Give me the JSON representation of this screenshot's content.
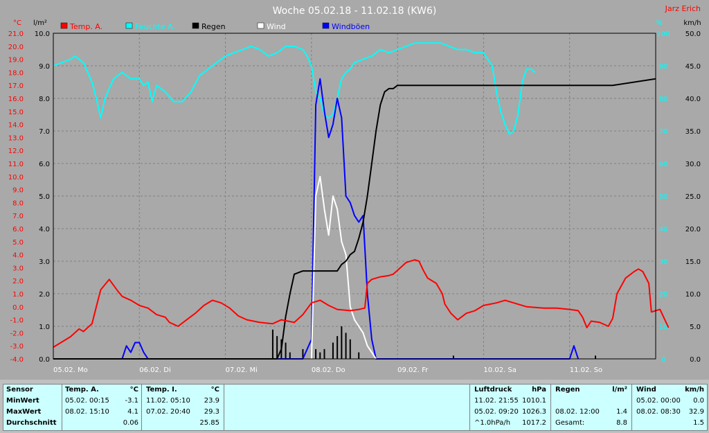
{
  "header": {
    "title": "Woche 05.02.18 - 11.02.18 (KW6)",
    "author": "Jarz Erich"
  },
  "legend": [
    {
      "label": "Temp. A.",
      "color": "#ff0000"
    },
    {
      "label": "Feuchte A.",
      "color": "#00ffff"
    },
    {
      "label": "Regen",
      "color": "#000000"
    },
    {
      "label": "Wind",
      "color": "#ffffff"
    },
    {
      "label": "Windböen",
      "color": "#0000ff"
    }
  ],
  "axes": {
    "left_temp_unit": "°C",
    "left_rain_unit": "l/m²",
    "right_hum_unit": "%",
    "right_wind_unit": "km/h",
    "temp_ticks": [
      "21.0",
      "20.0",
      "19.0",
      "18.0",
      "17.0",
      "16.0",
      "15.0",
      "14.0",
      "13.0",
      "12.0",
      "11.0",
      "10.0",
      "9.0",
      "8.0",
      "7.0",
      "6.0",
      "5.0",
      "4.0",
      "3.0",
      "2.0",
      "1.0",
      "0.0",
      "-1.0",
      "-2.0",
      "-3.0",
      "-4.0"
    ],
    "rain_ticks": [
      "10.0",
      "9.0",
      "8.0",
      "7.0",
      "6.0",
      "5.0",
      "4.0",
      "3.0",
      "2.0",
      "1.0",
      "0.0"
    ],
    "hum_ticks": [
      "100",
      "90",
      "80",
      "70",
      "60",
      "50",
      "40",
      "30",
      "20",
      "10",
      "0"
    ],
    "wind_ticks": [
      "50.0",
      "45.0",
      "40.0",
      "35.0",
      "30.0",
      "25.0",
      "20.0",
      "15.0",
      "10.0",
      "5.0",
      "0.0"
    ],
    "day_labels": [
      "05.02.  Mo",
      "06.02.  Di",
      "07.02.  Mi",
      "08.02.  Do",
      "09.02.  Fr",
      "10.02.  Sa",
      "11.02.  So"
    ]
  },
  "chart_data": {
    "type": "line",
    "title": "Woche 05.02.18 - 11.02.18 (KW6)",
    "x_unit": "days since 05.02. 00:00",
    "xlim": [
      0,
      7
    ],
    "temp_ylim": [
      -4,
      21
    ],
    "rain_ylim": [
      0,
      10
    ],
    "hum_ylim": [
      0,
      100
    ],
    "wind_ylim": [
      0,
      50
    ],
    "series": [
      {
        "name": "Temp. A.",
        "color": "#ff0000",
        "axis": "temp",
        "points": [
          [
            0,
            -3.1
          ],
          [
            0.1,
            -2.7
          ],
          [
            0.2,
            -2.3
          ],
          [
            0.3,
            -1.7
          ],
          [
            0.35,
            -1.9
          ],
          [
            0.45,
            -1.3
          ],
          [
            0.5,
            0.0
          ],
          [
            0.55,
            1.3
          ],
          [
            0.65,
            2.1
          ],
          [
            0.75,
            1.2
          ],
          [
            0.8,
            0.8
          ],
          [
            0.9,
            0.5
          ],
          [
            1.0,
            0.1
          ],
          [
            1.1,
            -0.1
          ],
          [
            1.2,
            -0.6
          ],
          [
            1.3,
            -0.8
          ],
          [
            1.35,
            -1.2
          ],
          [
            1.45,
            -1.5
          ],
          [
            1.55,
            -1.0
          ],
          [
            1.65,
            -0.5
          ],
          [
            1.75,
            0.1
          ],
          [
            1.85,
            0.5
          ],
          [
            1.95,
            0.3
          ],
          [
            2.05,
            -0.1
          ],
          [
            2.15,
            -0.7
          ],
          [
            2.25,
            -1.0
          ],
          [
            2.4,
            -1.2
          ],
          [
            2.55,
            -1.3
          ],
          [
            2.65,
            -1.0
          ],
          [
            2.8,
            -1.2
          ],
          [
            2.9,
            -0.6
          ],
          [
            3.0,
            0.3
          ],
          [
            3.1,
            0.5
          ],
          [
            3.2,
            0.1
          ],
          [
            3.3,
            -0.2
          ],
          [
            3.45,
            -0.3
          ],
          [
            3.55,
            -0.2
          ],
          [
            3.62,
            -0.1
          ],
          [
            3.65,
            1.8
          ],
          [
            3.7,
            2.1
          ],
          [
            3.8,
            2.3
          ],
          [
            3.9,
            2.4
          ],
          [
            3.95,
            2.5
          ],
          [
            4.0,
            2.8
          ],
          [
            4.1,
            3.4
          ],
          [
            4.2,
            3.6
          ],
          [
            4.25,
            3.5
          ],
          [
            4.3,
            2.8
          ],
          [
            4.35,
            2.2
          ],
          [
            4.45,
            1.8
          ],
          [
            4.52,
            1.0
          ],
          [
            4.55,
            0.2
          ],
          [
            4.62,
            -0.5
          ],
          [
            4.7,
            -1.0
          ],
          [
            4.8,
            -0.5
          ],
          [
            4.9,
            -0.3
          ],
          [
            5.0,
            0.1
          ],
          [
            5.15,
            0.3
          ],
          [
            5.25,
            0.5
          ],
          [
            5.35,
            0.3
          ],
          [
            5.5,
            0.0
          ],
          [
            5.7,
            -0.1
          ],
          [
            5.85,
            -0.1
          ],
          [
            6.0,
            -0.2
          ],
          [
            6.1,
            -0.3
          ],
          [
            6.15,
            -0.8
          ],
          [
            6.2,
            -1.6
          ],
          [
            6.25,
            -1.1
          ],
          [
            6.35,
            -1.2
          ],
          [
            6.45,
            -1.5
          ],
          [
            6.5,
            -0.9
          ],
          [
            6.55,
            1.0
          ],
          [
            6.65,
            2.2
          ],
          [
            6.75,
            2.7
          ],
          [
            6.8,
            2.9
          ],
          [
            6.85,
            2.7
          ],
          [
            6.92,
            1.8
          ],
          [
            6.95,
            -0.4
          ],
          [
            7.0,
            -0.3
          ],
          [
            7.05,
            -0.2
          ],
          [
            7.15,
            -1.6
          ]
        ]
      },
      {
        "name": "Feuchte A.",
        "color": "#00ffff",
        "axis": "hum",
        "points": [
          [
            0,
            90
          ],
          [
            0.1,
            91
          ],
          [
            0.2,
            92
          ],
          [
            0.25,
            93
          ],
          [
            0.35,
            91
          ],
          [
            0.45,
            85
          ],
          [
            0.5,
            80
          ],
          [
            0.55,
            74
          ],
          [
            0.6,
            80
          ],
          [
            0.7,
            86
          ],
          [
            0.8,
            88
          ],
          [
            0.9,
            86
          ],
          [
            1.0,
            86
          ],
          [
            1.05,
            84
          ],
          [
            1.1,
            85
          ],
          [
            1.15,
            79
          ],
          [
            1.2,
            84
          ],
          [
            1.3,
            82
          ],
          [
            1.4,
            79
          ],
          [
            1.5,
            79
          ],
          [
            1.6,
            82
          ],
          [
            1.7,
            87
          ],
          [
            1.8,
            89
          ],
          [
            1.9,
            91
          ],
          [
            2.0,
            93
          ],
          [
            2.1,
            94
          ],
          [
            2.2,
            95
          ],
          [
            2.3,
            96
          ],
          [
            2.4,
            95
          ],
          [
            2.5,
            93
          ],
          [
            2.6,
            94
          ],
          [
            2.7,
            96
          ],
          [
            2.8,
            96
          ],
          [
            2.9,
            95
          ],
          [
            2.95,
            93
          ],
          [
            3.0,
            90
          ],
          [
            3.05,
            82
          ],
          [
            3.1,
            80
          ],
          [
            3.15,
            75
          ],
          [
            3.2,
            74
          ],
          [
            3.25,
            75
          ],
          [
            3.3,
            80
          ],
          [
            3.35,
            86
          ],
          [
            3.4,
            88
          ],
          [
            3.45,
            89
          ],
          [
            3.5,
            91
          ],
          [
            3.6,
            92
          ],
          [
            3.7,
            93
          ],
          [
            3.8,
            95
          ],
          [
            3.9,
            94
          ],
          [
            4.0,
            95
          ],
          [
            4.1,
            96
          ],
          [
            4.2,
            97
          ],
          [
            4.3,
            97
          ],
          [
            4.4,
            97
          ],
          [
            4.5,
            97
          ],
          [
            4.6,
            96
          ],
          [
            4.7,
            95
          ],
          [
            4.8,
            95
          ],
          [
            4.9,
            94
          ],
          [
            5.0,
            94
          ],
          [
            5.1,
            90
          ],
          [
            5.15,
            82
          ],
          [
            5.2,
            76
          ],
          [
            5.25,
            72
          ],
          [
            5.3,
            69
          ],
          [
            5.35,
            70
          ],
          [
            5.4,
            75
          ],
          [
            5.45,
            85
          ],
          [
            5.5,
            89
          ],
          [
            5.55,
            89
          ],
          [
            5.6,
            88
          ]
        ]
      },
      {
        "name": "Regen",
        "color": "#000000",
        "axis": "rain",
        "points": [
          [
            0,
            0
          ],
          [
            2.6,
            0
          ],
          [
            2.65,
            0.3
          ],
          [
            2.7,
            1.3
          ],
          [
            2.75,
            2.0
          ],
          [
            2.8,
            2.6
          ],
          [
            2.9,
            2.7
          ],
          [
            3.0,
            2.7
          ],
          [
            3.1,
            2.7
          ],
          [
            3.2,
            2.7
          ],
          [
            3.3,
            2.7
          ],
          [
            3.35,
            2.9
          ],
          [
            3.4,
            3.0
          ],
          [
            3.45,
            3.2
          ],
          [
            3.5,
            3.3
          ],
          [
            3.55,
            3.7
          ],
          [
            3.6,
            4.2
          ],
          [
            3.65,
            5.0
          ],
          [
            3.7,
            6.0
          ],
          [
            3.75,
            7.0
          ],
          [
            3.8,
            7.8
          ],
          [
            3.85,
            8.2
          ],
          [
            3.9,
            8.3
          ],
          [
            3.95,
            8.3
          ],
          [
            4.0,
            8.4
          ],
          [
            4.5,
            8.4
          ],
          [
            5.0,
            8.4
          ],
          [
            5.5,
            8.4
          ],
          [
            6.0,
            8.4
          ],
          [
            6.5,
            8.4
          ],
          [
            7.0,
            8.6
          ]
        ]
      },
      {
        "name": "Wind",
        "color": "#ffffff",
        "axis": "wind",
        "points": [
          [
            3.0,
            0
          ],
          [
            3.05,
            25
          ],
          [
            3.1,
            28
          ],
          [
            3.15,
            23
          ],
          [
            3.2,
            19
          ],
          [
            3.25,
            25
          ],
          [
            3.3,
            23
          ],
          [
            3.35,
            18
          ],
          [
            3.4,
            16
          ],
          [
            3.45,
            8
          ],
          [
            3.5,
            6
          ],
          [
            3.55,
            5
          ],
          [
            3.6,
            4
          ],
          [
            3.65,
            2
          ],
          [
            3.7,
            1
          ],
          [
            3.75,
            0
          ]
        ]
      },
      {
        "name": "Windböen",
        "color": "#0000ff",
        "axis": "wind",
        "points": [
          [
            0.8,
            0
          ],
          [
            0.85,
            2
          ],
          [
            0.9,
            1
          ],
          [
            0.95,
            2.5
          ],
          [
            1.0,
            2.5
          ],
          [
            1.05,
            1
          ],
          [
            1.1,
            0
          ],
          [
            2.9,
            0
          ],
          [
            3.0,
            3
          ],
          [
            3.05,
            39
          ],
          [
            3.1,
            43
          ],
          [
            3.15,
            38
          ],
          [
            3.2,
            34
          ],
          [
            3.25,
            36
          ],
          [
            3.3,
            40
          ],
          [
            3.35,
            37
          ],
          [
            3.4,
            25
          ],
          [
            3.45,
            24
          ],
          [
            3.5,
            22
          ],
          [
            3.55,
            21
          ],
          [
            3.6,
            22
          ],
          [
            3.65,
            10
          ],
          [
            3.7,
            3
          ],
          [
            3.75,
            0
          ],
          [
            6.0,
            0
          ],
          [
            6.05,
            2
          ],
          [
            6.1,
            0
          ]
        ]
      }
    ],
    "rain_bars": [
      [
        2.55,
        0.9
      ],
      [
        2.6,
        0.7
      ],
      [
        2.65,
        0.6
      ],
      [
        2.7,
        0.5
      ],
      [
        2.75,
        0.2
      ],
      [
        2.9,
        0.3
      ],
      [
        3.05,
        0.3
      ],
      [
        3.1,
        0.2
      ],
      [
        3.15,
        0.3
      ],
      [
        3.25,
        0.5
      ],
      [
        3.3,
        0.7
      ],
      [
        3.35,
        1.0
      ],
      [
        3.4,
        0.8
      ],
      [
        3.45,
        0.6
      ],
      [
        3.55,
        0.2
      ],
      [
        4.65,
        0.1
      ],
      [
        6.3,
        0.1
      ]
    ]
  },
  "stats": {
    "sensor": {
      "h1": "Sensor",
      "r1": "MinWert",
      "r2": "MaxWert",
      "r3": "Durchschnitt"
    },
    "temp_a": {
      "title": "Temp. A.",
      "unit": "°C",
      "min_time": "05.02.  00:15",
      "min_val": "-3.1",
      "max_time": "08.02.  15:10",
      "max_val": "4.1",
      "avg": "0.06"
    },
    "temp_i": {
      "title": "Temp. I.",
      "unit": "°C",
      "min_time": "11.02.  05:10",
      "min_val": "23.9",
      "max_time": "07.02.  20:40",
      "max_val": "29.3",
      "avg": "25.85"
    },
    "pressure": {
      "title": "Luftdruck",
      "unit": "hPa",
      "min_time": "11.02.  21:55",
      "min_val": "1010.1",
      "max_time": "05.02.  09:20",
      "max_val": "1026.3",
      "trend": "^1.0hPa/h",
      "trend_val": "1017.2"
    },
    "rain": {
      "title": "Regen",
      "unit": "l/m²",
      "max_time": "08.02.  12:00",
      "max_val": "1.4",
      "total_label": "Gesamt:",
      "total": "8.8"
    },
    "wind": {
      "title": "Wind",
      "unit": "km/h",
      "min_time": "05.02.  00:00",
      "min_val": "0.0",
      "max_time": "08.02.  08:30",
      "max_val": "32.9",
      "avg": "1.5"
    }
  }
}
